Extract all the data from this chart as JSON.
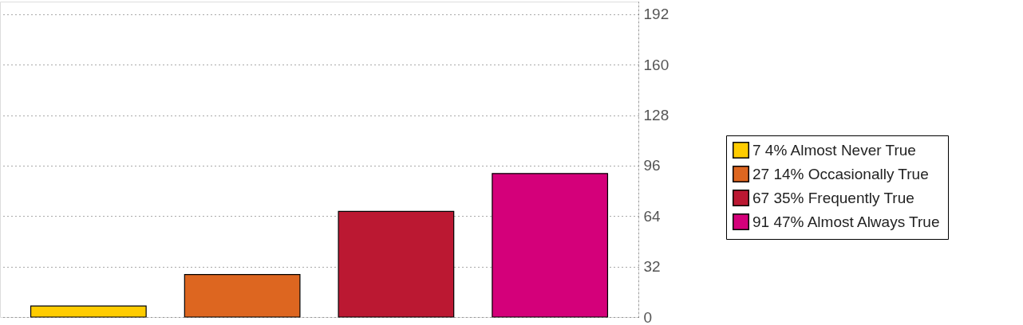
{
  "chart_data": {
    "type": "bar",
    "categories": [
      null,
      null,
      null,
      null
    ],
    "series": [
      {
        "name": "7 4% Almost Never True",
        "color": "#ffcc00",
        "values": [
          7,
          null,
          null,
          null
        ]
      },
      {
        "name": "27 14% Occasionally True",
        "color": "#dd6620",
        "values": [
          null,
          27,
          null,
          null
        ]
      },
      {
        "name": "67 35% Frequently True",
        "color": "#bb1832",
        "values": [
          null,
          null,
          67,
          null
        ]
      },
      {
        "name": "91 47% Almost Always True",
        "color": "#d4007a",
        "values": [
          null,
          null,
          null,
          91
        ]
      }
    ],
    "ylim": [
      0,
      200
    ],
    "yticks": [
      0,
      32,
      64,
      96,
      128,
      160,
      192
    ],
    "grid": "y",
    "legend": "right",
    "tick_labels": "y"
  }
}
